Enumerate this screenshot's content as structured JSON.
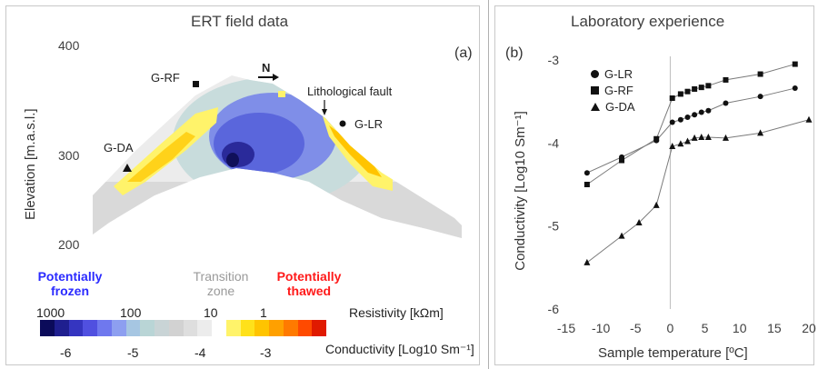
{
  "left": {
    "title": "ERT field data",
    "panel_label": "(a)",
    "ylabel": "Elevation [m.a.s.l.]",
    "yticks": [
      "400",
      "300",
      "200"
    ],
    "north_label": "N",
    "annotations": {
      "g_rf": "G-RF",
      "g_da": "G-DA",
      "g_lr": "G-LR",
      "fault": "Lithological fault"
    },
    "classes": {
      "frozen": "Potentially frozen",
      "transition": "Transition zone",
      "thawed": "Potentially thawed"
    },
    "class_colors": {
      "frozen": "#2b2bff",
      "transition": "#9a9a9a",
      "thawed": "#ff1a1a"
    },
    "resistivity_label": "Resistivity [kΩm]",
    "resistivity_ticks": [
      "1000",
      "100",
      "10",
      "1"
    ],
    "conductivity_label": "Conductivity [Log10 Sm⁻¹]",
    "conductivity_ticks": [
      "-6",
      "-5",
      "-4",
      "-3"
    ],
    "colorbar": [
      "#0b0b5a",
      "#1f1f8f",
      "#3535c0",
      "#5050e0",
      "#6f78ee",
      "#8d9ff0",
      "#a6c6e2",
      "#b9d5d6",
      "#c9d4d6",
      "#d2d2d2",
      "#dedede",
      "#ececec",
      "#ffffff",
      "#fff36a",
      "#ffe11a",
      "#ffc400",
      "#ffa000",
      "#ff7a00",
      "#ff4a00",
      "#e01a00"
    ]
  },
  "right": {
    "title": "Laboratory experience",
    "panel_label": "(b)",
    "ylabel": "Conductivity  [Log10 Sm⁻¹]",
    "xlabel": "Sample temperature [ºC]"
  },
  "chart_data": [
    {
      "type": "heatmap",
      "title": "ERT field data",
      "ylabel": "Elevation [m.a.s.l.]",
      "ylim": [
        200,
        400
      ],
      "yticks": [
        400,
        300,
        200
      ],
      "colorbar": {
        "resistivity_kOhm_m": [
          1000,
          100,
          10,
          1
        ],
        "conductivity_log10_S_per_m": [
          -6,
          -5,
          -4,
          -3
        ],
        "range": [
          -6.5,
          -2.5
        ]
      }
    },
    {
      "type": "scatter",
      "title": "Laboratory experience",
      "xlabel": "Sample temperature [ºC]",
      "ylabel": "Conductivity  [Log10 Sm⁻¹]",
      "xlim": [
        -15,
        20
      ],
      "ylim": [
        -6,
        -3
      ],
      "xticks": [
        -15,
        -10,
        -5,
        0,
        5,
        10,
        15,
        20
      ],
      "yticks": [
        -6,
        -5,
        -4,
        -3
      ],
      "legend_position": "top-left",
      "series": [
        {
          "name": "G-LR",
          "marker": "circle",
          "x": [
            -12,
            -7,
            -2,
            0.3,
            1.5,
            2.5,
            3.5,
            4.5,
            5.5,
            8,
            13,
            18
          ],
          "y": [
            -4.36,
            -4.17,
            -3.97,
            -3.75,
            -3.72,
            -3.69,
            -3.66,
            -3.63,
            -3.61,
            -3.52,
            -3.44,
            -3.34
          ]
        },
        {
          "name": "G-RF",
          "marker": "square",
          "x": [
            -12,
            -7,
            -2,
            0.3,
            1.5,
            2.5,
            3.5,
            4.5,
            5.5,
            8,
            13,
            18
          ],
          "y": [
            -4.5,
            -4.21,
            -3.95,
            -3.46,
            -3.41,
            -3.38,
            -3.35,
            -3.33,
            -3.31,
            -3.24,
            -3.17,
            -3.05
          ]
        },
        {
          "name": "G-DA",
          "marker": "triangle",
          "x": [
            -12,
            -7,
            -4.5,
            -2,
            0.3,
            1.5,
            2.5,
            3.5,
            4.5,
            5.5,
            8,
            13,
            20
          ],
          "y": [
            -5.44,
            -5.12,
            -4.96,
            -4.75,
            -4.04,
            -4.01,
            -3.98,
            -3.94,
            -3.93,
            -3.93,
            -3.94,
            -3.88,
            -3.72
          ]
        }
      ]
    }
  ]
}
